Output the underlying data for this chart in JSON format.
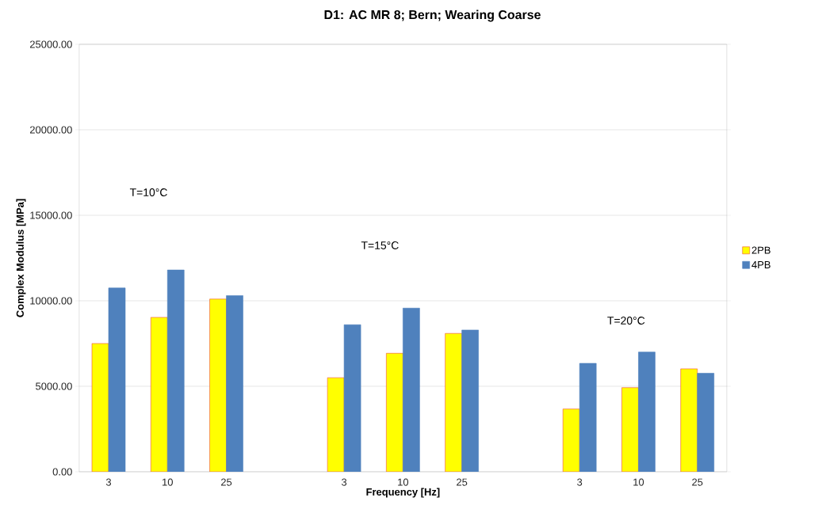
{
  "chart_data": {
    "type": "bar",
    "title": "D1: AC MR 8; Bern; Wearing Coarse",
    "xlabel": "Frequency [Hz]",
    "ylabel": "Complex Modulus [MPa]",
    "categories": [
      "3",
      "10",
      "25",
      null,
      "3",
      "10",
      "25",
      null,
      "3",
      "10",
      "25"
    ],
    "series": [
      {
        "name": "2PB",
        "color": "#ffff00",
        "values": [
          7500,
          9030,
          10100,
          null,
          5500,
          6930,
          8090,
          null,
          3670,
          4920,
          6020
        ]
      },
      {
        "name": "4PB",
        "color": "#4f81bd",
        "values": [
          10750,
          11800,
          10300,
          null,
          8600,
          9570,
          8290,
          null,
          6340,
          7000,
          5760
        ]
      }
    ],
    "ylim": [
      0,
      25000
    ],
    "yticks": [
      {
        "value": 0,
        "label": "0.00"
      },
      {
        "value": 5000,
        "label": "5000.00"
      },
      {
        "value": 10000,
        "label": "10000.00"
      },
      {
        "value": 15000,
        "label": "15000.00"
      },
      {
        "value": 20000,
        "label": "20000.00"
      },
      {
        "value": 25000,
        "label": "25000.00"
      }
    ],
    "annotations": [
      "T=10°C",
      "T=15°C",
      "T=20°C"
    ],
    "grid": "y",
    "legend": "right"
  }
}
